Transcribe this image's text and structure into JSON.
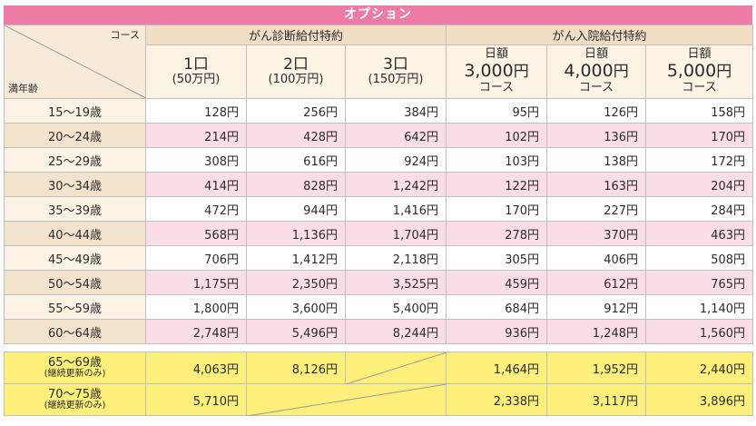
{
  "option_banner": "オプション",
  "corner": {
    "top_label": "コース",
    "bottom_label": "満年齢"
  },
  "groups": {
    "diagnosis": "がん診断給付特約",
    "hospital": "がん入院給付特約"
  },
  "columns": [
    {
      "l1": "1口",
      "l2": "(50万円)"
    },
    {
      "l1": "2口",
      "l2": "(100万円)"
    },
    {
      "l1": "3口",
      "l2": "(150万円)"
    },
    {
      "l1": "日額",
      "amount": "3,000",
      "unit": "円",
      "l3": "コース"
    },
    {
      "l1": "日額",
      "amount": "4,000",
      "unit": "円",
      "l3": "コース"
    },
    {
      "l1": "日額",
      "amount": "5,000",
      "unit": "円",
      "l3": "コース"
    }
  ],
  "rows": [
    {
      "age": "15～19歳",
      "values": [
        "128円",
        "256円",
        "384円",
        "95円",
        "126円",
        "158円"
      ]
    },
    {
      "age": "20～24歳",
      "values": [
        "214円",
        "428円",
        "642円",
        "102円",
        "136円",
        "170円"
      ]
    },
    {
      "age": "25～29歳",
      "values": [
        "308円",
        "616円",
        "924円",
        "103円",
        "138円",
        "172円"
      ]
    },
    {
      "age": "30～34歳",
      "values": [
        "414円",
        "828円",
        "1,242円",
        "122円",
        "163円",
        "204円"
      ]
    },
    {
      "age": "35～39歳",
      "values": [
        "472円",
        "944円",
        "1,416円",
        "170円",
        "227円",
        "284円"
      ]
    },
    {
      "age": "40～44歳",
      "values": [
        "568円",
        "1,136円",
        "1,704円",
        "278円",
        "370円",
        "463円"
      ]
    },
    {
      "age": "45～49歳",
      "values": [
        "706円",
        "1,412円",
        "2,118円",
        "305円",
        "406円",
        "508円"
      ]
    },
    {
      "age": "50～54歳",
      "values": [
        "1,175円",
        "2,350円",
        "3,525円",
        "459円",
        "612円",
        "765円"
      ]
    },
    {
      "age": "55～59歳",
      "values": [
        "1,800円",
        "3,600円",
        "5,400円",
        "684円",
        "912円",
        "1,140円"
      ]
    },
    {
      "age": "60～64歳",
      "values": [
        "2,748円",
        "5,496円",
        "8,244円",
        "936円",
        "1,248円",
        "1,560円"
      ]
    }
  ],
  "extra_rows": [
    {
      "age": "65～69歳",
      "note": "(継続更新のみ)",
      "values": [
        "4,063円",
        "8,126円",
        "",
        "1,464円",
        "1,952円",
        "2,440円"
      ]
    },
    {
      "age": "70～75歳",
      "note": "(継続更新のみ)",
      "values": [
        "5,710円",
        "",
        "",
        "2,338円",
        "3,117円",
        "3,896円"
      ]
    }
  ],
  "colors": {
    "banner": "#ee7aa6",
    "header_group": "#f0ddc3",
    "header_sub": "#fbf3e4",
    "row_even": "#fbdde6",
    "extra_rows": "#fdf07a"
  }
}
